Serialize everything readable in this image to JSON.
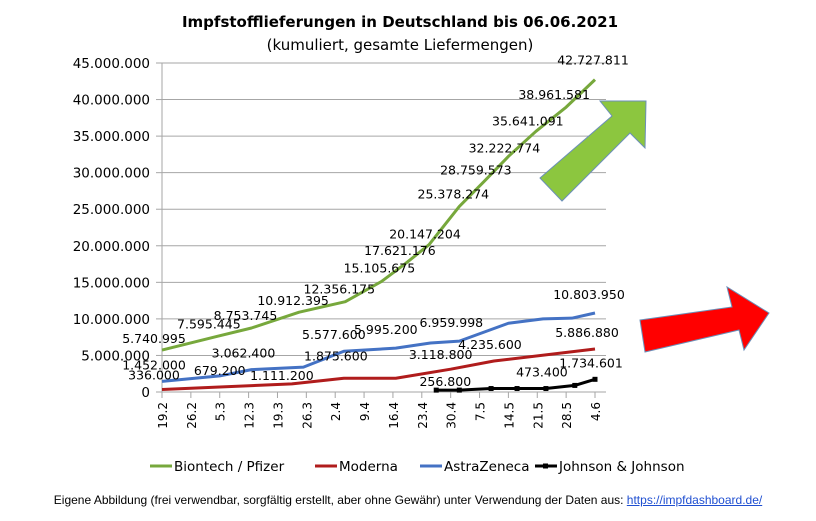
{
  "chart_data": {
    "type": "line",
    "title": "Impfstofflieferungen in Deutschland bis 06.06.2021",
    "subtitle": "(kumuliert, gesamte Liefermengen)",
    "xlabel": "",
    "ylabel": "",
    "ylim": [
      0,
      45000000
    ],
    "yticks": [
      0,
      5000000,
      10000000,
      15000000,
      20000000,
      25000000,
      30000000,
      35000000,
      40000000,
      45000000
    ],
    "ytick_labels": [
      "0",
      "5.000.000",
      "10.000.000",
      "15.000.000",
      "20.000.000",
      "25.000.000",
      "30.000.000",
      "35.000.000",
      "40.000.000",
      "45.000.000"
    ],
    "categories": [
      "19.2",
      "26.2",
      "5.3",
      "12.3",
      "19.3",
      "26.3",
      "2.4",
      "9.4",
      "16.4",
      "23.4",
      "30.4",
      "7.5",
      "14.5",
      "21.5",
      "28.5",
      "4.6"
    ],
    "grid": "horizontal",
    "legend_position": "bottom",
    "series": [
      {
        "name": "Biontech / Pfizer",
        "color": "#77a83c",
        "points": [
          {
            "x": 0,
            "y": 5740995,
            "label": "5.740.995"
          },
          {
            "x": 1.9,
            "y": 7595445,
            "label": "7.595.445"
          },
          {
            "x": 3.1,
            "y": 8753745,
            "label": "8.753.745"
          },
          {
            "x": 4.75,
            "y": 10912395,
            "label": "10.912.395"
          },
          {
            "x": 6.35,
            "y": 12356175,
            "label": "12.356.175"
          },
          {
            "x": 7.6,
            "y": 15105675,
            "label": "15.105.675"
          },
          {
            "x": 8.45,
            "y": 17621176,
            "label": "17.621.176"
          },
          {
            "x": 9.25,
            "y": 20147204,
            "label": "20.147.204"
          },
          {
            "x": 10.3,
            "y": 25378274,
            "label": "25.378.274"
          },
          {
            "x": 11.15,
            "y": 28759573,
            "label": "28.759.573"
          },
          {
            "x": 12.0,
            "y": 32222774,
            "label": "32.222.774"
          },
          {
            "x": 12.95,
            "y": 35641091,
            "label": "35.641.091"
          },
          {
            "x": 14.0,
            "y": 38961581,
            "label": "38.961.581"
          },
          {
            "x": 15.0,
            "y": 42727811,
            "label": "42.727.811"
          }
        ]
      },
      {
        "name": "Moderna",
        "color": "#b01c1c",
        "points": [
          {
            "x": 0,
            "y": 336000,
            "label": "336.000"
          },
          {
            "x": 2,
            "y": 679200,
            "label": "679.200"
          },
          {
            "x": 4.5,
            "y": 1111200,
            "label": "1.111.200"
          },
          {
            "x": 6.3,
            "y": 1875600,
            "label": "1.875.600"
          },
          {
            "x": 8.1,
            "y": 1875600,
            "label": ""
          },
          {
            "x": 10,
            "y": 3118800,
            "label": "3.118.800"
          },
          {
            "x": 11.5,
            "y": 4235600,
            "label": "4.235.600"
          },
          {
            "x": 15.0,
            "y": 5886880,
            "label": "5.886.880"
          }
        ]
      },
      {
        "name": "AstraZeneca",
        "color": "#4472c4",
        "points": [
          {
            "x": 0,
            "y": 1452000,
            "label": "1.452.000"
          },
          {
            "x": 2,
            "y": 2200000,
            "label": ""
          },
          {
            "x": 3.1,
            "y": 3062400,
            "label": "3.062.400"
          },
          {
            "x": 4.9,
            "y": 3400000,
            "label": ""
          },
          {
            "x": 6.3,
            "y": 5577600,
            "label": "5.577.600"
          },
          {
            "x": 8.1,
            "y": 5995200,
            "label": "5.995.200"
          },
          {
            "x": 9.3,
            "y": 6700000,
            "label": ""
          },
          {
            "x": 10.3,
            "y": 6959998,
            "label": "6.959.998"
          },
          {
            "x": 12.0,
            "y": 9400000,
            "label": ""
          },
          {
            "x": 13.2,
            "y": 10000000,
            "label": ""
          },
          {
            "x": 14.2,
            "y": 10100000,
            "label": ""
          },
          {
            "x": 15.0,
            "y": 10803950,
            "label": "10.803.950"
          }
        ]
      },
      {
        "name": "Johnson & Johnson",
        "color": "#000000",
        "points": [
          {
            "x": 9.5,
            "y": 256800,
            "label": ""
          },
          {
            "x": 10.3,
            "y": 256800,
            "label": "256.800"
          },
          {
            "x": 11.4,
            "y": 473400,
            "label": ""
          },
          {
            "x": 12.3,
            "y": 473400,
            "label": ""
          },
          {
            "x": 13.3,
            "y": 473400,
            "label": "473.400"
          },
          {
            "x": 14.3,
            "y": 900000,
            "label": ""
          },
          {
            "x": 15.0,
            "y": 1734601,
            "label": "1.734.601"
          }
        ]
      }
    ],
    "annotations": [
      {
        "type": "arrow",
        "color": "#8cc63f",
        "direction": "up-right",
        "near": "Biontech / Pfizer"
      },
      {
        "type": "arrow",
        "color": "#ff0000",
        "direction": "right",
        "near": "AstraZeneca / Moderna"
      }
    ]
  },
  "footer": {
    "text": "Eigene Abbildung  (frei verwendbar, sorgfältig erstellt, aber ohne Gewähr) unter Verwendung  der Daten aus: ",
    "link": "https://impfdashboard.de/"
  }
}
